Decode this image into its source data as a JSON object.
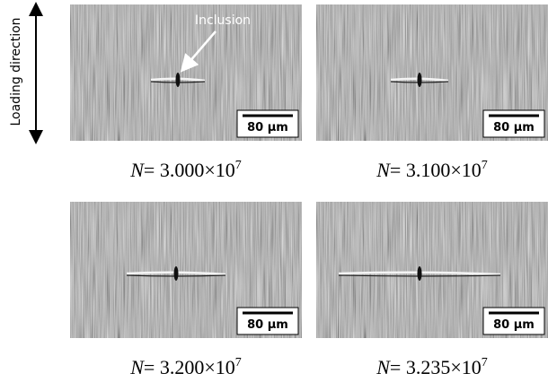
{
  "axis_label": "Loading direction",
  "annotation": "Inclusion",
  "panels": [
    {
      "scale_bar": "80 µm",
      "caption": {
        "symbol": "N",
        "text": "= 3.000×10",
        "exponent": "7"
      }
    },
    {
      "scale_bar": "80 µm",
      "caption": {
        "symbol": "N",
        "text": "= 3.100×10",
        "exponent": "7"
      }
    },
    {
      "scale_bar": "80 µm",
      "caption": {
        "symbol": "N",
        "text": "= 3.200×10",
        "exponent": "7"
      }
    },
    {
      "scale_bar": "80 µm",
      "caption": {
        "symbol": "N",
        "text": "= 3.235×10",
        "exponent": "7"
      }
    }
  ]
}
